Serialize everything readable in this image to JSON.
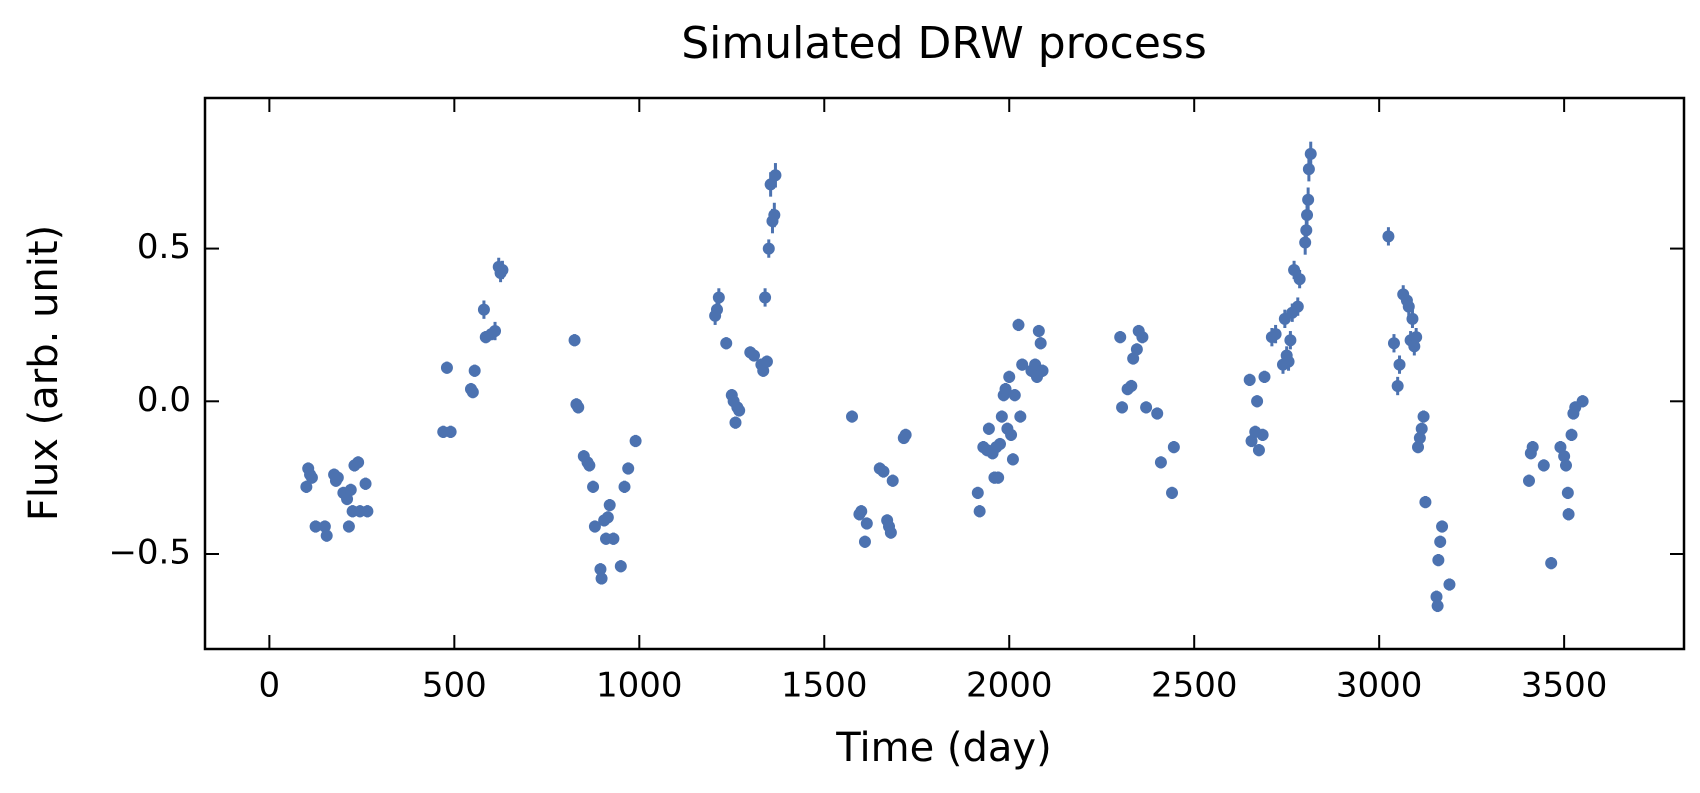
{
  "chart_data": {
    "type": "errorbar",
    "title": "Simulated DRW process",
    "x_label": "Time (day)",
    "y_label": "Flux (arb. unit)",
    "xlim": [
      -174,
      3824
    ],
    "ylim": [
      -0.811,
      0.993
    ],
    "xticks": [
      0,
      500,
      1000,
      1500,
      2000,
      2500,
      3000,
      3500
    ],
    "yticks": [
      {
        "value": -0.5,
        "label": "−0.5"
      },
      {
        "value": 0,
        "label": "0.0"
      },
      0.5
    ],
    "series": [
      {
        "color": "#4c72b0",
        "x": [
          100,
          105,
          110,
          115,
          125,
          150,
          155,
          175,
          180,
          185,
          200,
          210,
          215,
          220,
          225,
          230,
          240,
          245,
          260,
          265,
          470,
          480,
          490,
          545,
          550,
          555,
          580,
          585,
          600,
          610,
          620,
          625,
          630,
          825,
          830,
          835,
          850,
          860,
          865,
          875,
          880,
          895,
          898,
          905,
          910,
          915,
          920,
          930,
          950,
          960,
          970,
          990,
          1205,
          1210,
          1215,
          1235,
          1250,
          1255,
          1260,
          1265,
          1270,
          1300,
          1310,
          1330,
          1335,
          1340,
          1345,
          1350,
          1355,
          1360,
          1365,
          1368,
          1575,
          1595,
          1600,
          1610,
          1615,
          1650,
          1660,
          1670,
          1675,
          1680,
          1685,
          1715,
          1720,
          1915,
          1920,
          1930,
          1940,
          1945,
          1955,
          1960,
          1965,
          1970,
          1975,
          1980,
          1985,
          1990,
          1995,
          2000,
          2005,
          2010,
          2015,
          2025,
          2030,
          2035,
          2060,
          2070,
          2075,
          2080,
          2085,
          2090,
          2300,
          2305,
          2320,
          2330,
          2335,
          2345,
          2350,
          2360,
          2370,
          2400,
          2410,
          2440,
          2445,
          2650,
          2655,
          2665,
          2670,
          2675,
          2685,
          2690,
          2710,
          2720,
          2740,
          2745,
          2750,
          2755,
          2760,
          2765,
          2770,
          2780,
          2785,
          2800,
          2803,
          2805,
          2808,
          2810,
          2815,
          3025,
          3040,
          3050,
          3055,
          3065,
          3075,
          3080,
          3085,
          3090,
          3095,
          3100,
          3105,
          3110,
          3115,
          3120,
          3125,
          3155,
          3158,
          3160,
          3165,
          3170,
          3190,
          3405,
          3410,
          3415,
          3445,
          3465,
          3490,
          3500,
          3505,
          3510,
          3512,
          3520,
          3525,
          3530,
          3550
        ],
        "y": [
          -0.28,
          -0.22,
          -0.24,
          -0.25,
          -0.41,
          -0.41,
          -0.44,
          -0.24,
          -0.26,
          -0.25,
          -0.3,
          -0.32,
          -0.41,
          -0.29,
          -0.36,
          -0.21,
          -0.2,
          -0.36,
          -0.27,
          -0.36,
          -0.1,
          0.11,
          -0.1,
          0.04,
          0.03,
          0.1,
          0.3,
          0.21,
          0.22,
          0.23,
          0.44,
          0.42,
          0.43,
          0.2,
          -0.01,
          -0.02,
          -0.18,
          -0.2,
          -0.21,
          -0.28,
          -0.41,
          -0.55,
          -0.58,
          -0.39,
          -0.45,
          -0.38,
          -0.34,
          -0.45,
          -0.54,
          -0.28,
          -0.22,
          -0.13,
          0.28,
          0.3,
          0.34,
          0.19,
          0.02,
          0.0,
          -0.07,
          -0.02,
          -0.03,
          0.16,
          0.15,
          0.12,
          0.1,
          0.34,
          0.13,
          0.5,
          0.71,
          0.59,
          0.61,
          0.74,
          -0.05,
          -0.37,
          -0.36,
          -0.46,
          -0.4,
          -0.22,
          -0.23,
          -0.39,
          -0.41,
          -0.43,
          -0.26,
          -0.12,
          -0.11,
          -0.3,
          -0.36,
          -0.15,
          -0.16,
          -0.09,
          -0.17,
          -0.25,
          -0.15,
          -0.25,
          -0.14,
          -0.05,
          0.02,
          0.04,
          -0.09,
          0.08,
          -0.11,
          -0.19,
          0.02,
          0.25,
          -0.05,
          0.12,
          0.1,
          0.12,
          0.08,
          0.23,
          0.19,
          0.1,
          0.21,
          -0.02,
          0.04,
          0.05,
          0.14,
          0.17,
          0.23,
          0.21,
          -0.02,
          -0.04,
          -0.2,
          -0.3,
          -0.15,
          0.07,
          -0.13,
          -0.1,
          0.0,
          -0.16,
          -0.11,
          0.08,
          0.21,
          0.22,
          0.12,
          0.27,
          0.15,
          0.13,
          0.2,
          0.29,
          0.43,
          0.31,
          0.4,
          0.52,
          0.56,
          0.61,
          0.66,
          0.76,
          0.81,
          0.54,
          0.19,
          0.05,
          0.12,
          0.35,
          0.33,
          0.31,
          0.2,
          0.27,
          0.18,
          0.21,
          -0.15,
          -0.12,
          -0.09,
          -0.05,
          -0.33,
          -0.64,
          -0.67,
          -0.52,
          -0.46,
          -0.41,
          -0.6,
          -0.26,
          -0.17,
          -0.15,
          -0.21,
          -0.53,
          -0.15,
          -0.18,
          -0.21,
          -0.3,
          -0.37,
          -0.11,
          -0.04,
          -0.02,
          0.0
        ],
        "yerr": [
          0.02,
          0.02,
          0.02,
          0.02,
          0.02,
          0.02,
          0.02,
          0.02,
          0.02,
          0.02,
          0.02,
          0.02,
          0.02,
          0.02,
          0.02,
          0.02,
          0.02,
          0.02,
          0.02,
          0.02,
          0.02,
          0.02,
          0.02,
          0.02,
          0.02,
          0.02,
          0.03,
          0.02,
          0.02,
          0.03,
          0.03,
          0.03,
          0.03,
          0.02,
          0.02,
          0.02,
          0.02,
          0.02,
          0.02,
          0.02,
          0.02,
          0.02,
          0.02,
          0.02,
          0.02,
          0.02,
          0.02,
          0.02,
          0.02,
          0.02,
          0.02,
          0.02,
          0.03,
          0.03,
          0.03,
          0.02,
          0.02,
          0.02,
          0.02,
          0.02,
          0.02,
          0.02,
          0.02,
          0.02,
          0.02,
          0.03,
          0.02,
          0.03,
          0.04,
          0.04,
          0.04,
          0.04,
          0.02,
          0.02,
          0.02,
          0.02,
          0.02,
          0.02,
          0.02,
          0.02,
          0.02,
          0.02,
          0.02,
          0.02,
          0.02,
          0.02,
          0.02,
          0.02,
          0.02,
          0.02,
          0.02,
          0.02,
          0.02,
          0.02,
          0.02,
          0.02,
          0.02,
          0.02,
          0.02,
          0.02,
          0.02,
          0.02,
          0.02,
          0.02,
          0.02,
          0.02,
          0.02,
          0.02,
          0.02,
          0.02,
          0.02,
          0.02,
          0.02,
          0.02,
          0.02,
          0.02,
          0.02,
          0.02,
          0.02,
          0.02,
          0.02,
          0.02,
          0.02,
          0.02,
          0.02,
          0.02,
          0.02,
          0.02,
          0.02,
          0.02,
          0.02,
          0.02,
          0.03,
          0.03,
          0.03,
          0.03,
          0.03,
          0.03,
          0.03,
          0.03,
          0.03,
          0.03,
          0.03,
          0.04,
          0.04,
          0.04,
          0.04,
          0.04,
          0.04,
          0.03,
          0.03,
          0.03,
          0.03,
          0.03,
          0.03,
          0.03,
          0.03,
          0.03,
          0.03,
          0.03,
          0.02,
          0.02,
          0.02,
          0.02,
          0.02,
          0.02,
          0.02,
          0.02,
          0.02,
          0.02,
          0.02,
          0.02,
          0.02,
          0.02,
          0.02,
          0.02,
          0.02,
          0.02,
          0.02,
          0.02,
          0.02,
          0.02,
          0.02,
          0.02,
          0.02
        ]
      }
    ]
  }
}
